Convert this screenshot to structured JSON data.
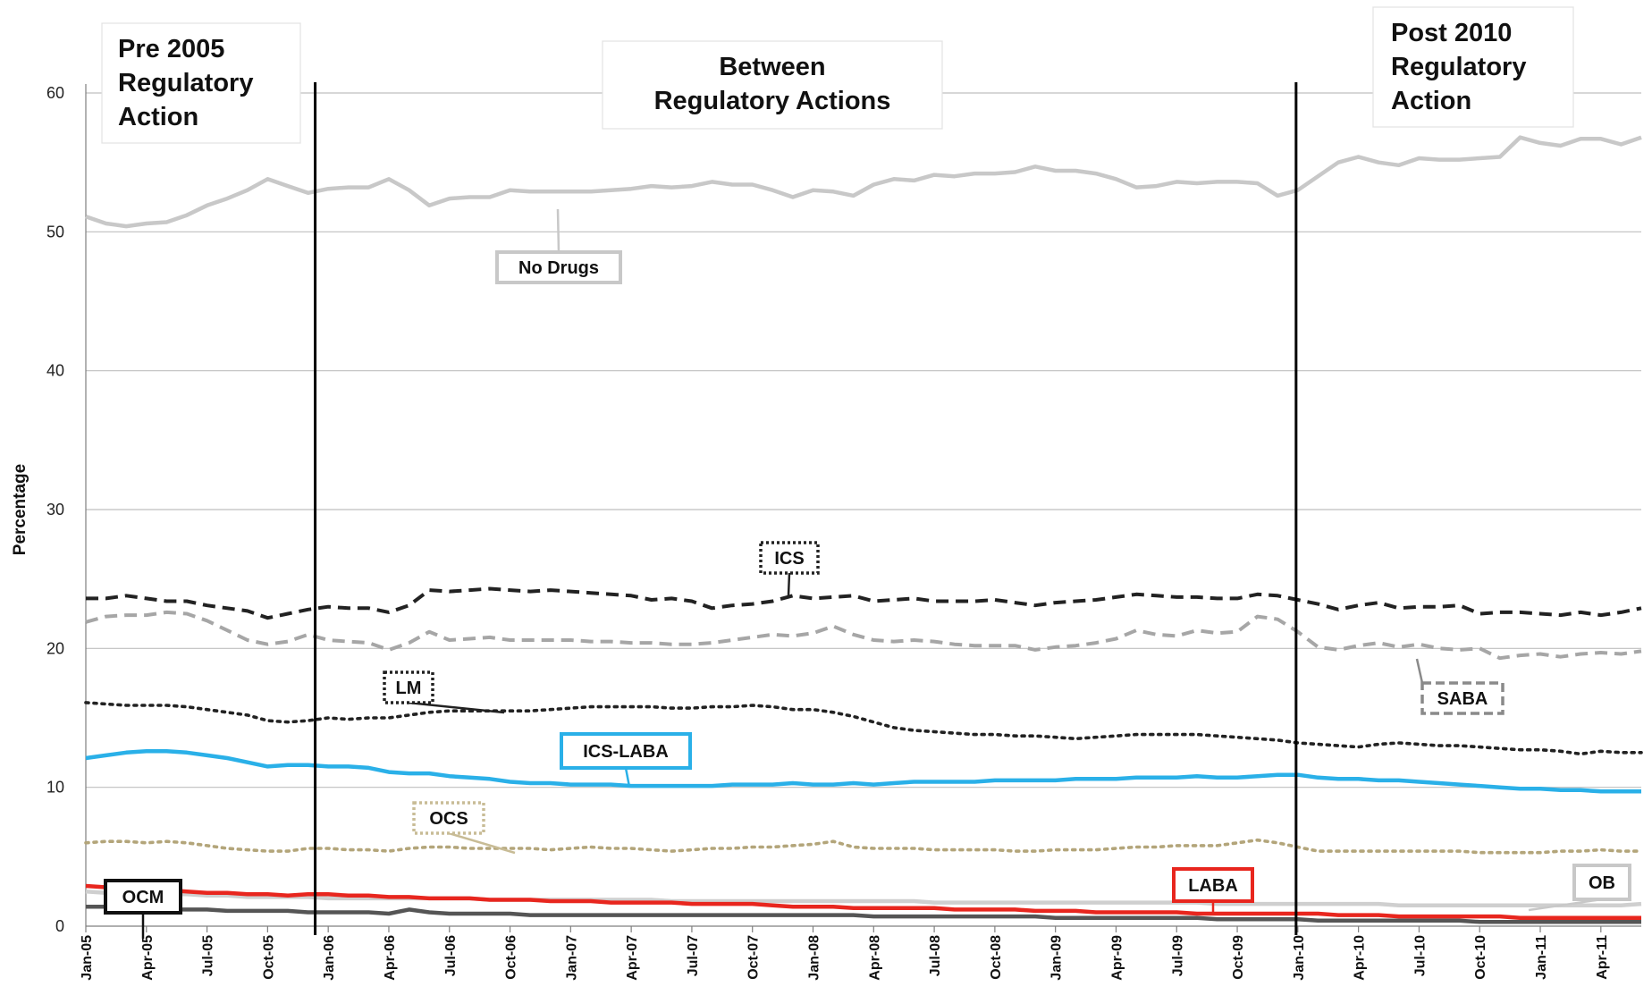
{
  "chart_data": {
    "type": "line",
    "title": "",
    "xlabel": "",
    "ylabel": "Percentage",
    "ylim": [
      0,
      60
    ],
    "yticks": [
      0,
      10,
      20,
      30,
      40,
      50,
      60
    ],
    "grid": true,
    "x": [
      "Jan-05",
      "Feb-05",
      "Mar-05",
      "Apr-05",
      "May-05",
      "Jun-05",
      "Jul-05",
      "Aug-05",
      "Sep-05",
      "Oct-05",
      "Nov-05",
      "Dec-05",
      "Jan-06",
      "Feb-06",
      "Mar-06",
      "Apr-06",
      "May-06",
      "Jun-06",
      "Jul-06",
      "Aug-06",
      "Sep-06",
      "Oct-06",
      "Nov-06",
      "Dec-06",
      "Jan-07",
      "Feb-07",
      "Mar-07",
      "Apr-07",
      "May-07",
      "Jun-07",
      "Jul-07",
      "Aug-07",
      "Sep-07",
      "Oct-07",
      "Nov-07",
      "Dec-07",
      "Jan-08",
      "Feb-08",
      "Mar-08",
      "Apr-08",
      "May-08",
      "Jun-08",
      "Jul-08",
      "Aug-08",
      "Sep-08",
      "Oct-08",
      "Nov-08",
      "Dec-08",
      "Jan-09",
      "Feb-09",
      "Mar-09",
      "Apr-09",
      "May-09",
      "Jun-09",
      "Jul-09",
      "Aug-09",
      "Sep-09",
      "Oct-09",
      "Nov-09",
      "Dec-09",
      "Jan-10",
      "Feb-10",
      "Mar-10",
      "Apr-10",
      "May-10",
      "Jun-10",
      "Jul-10",
      "Aug-10",
      "Sep-10",
      "Oct-10",
      "Nov-10",
      "Dec-10",
      "Jan-11",
      "Feb-11",
      "Mar-11",
      "Apr-11",
      "May-11",
      "Jun-11"
    ],
    "xtick_labels": [
      "Jan-05",
      "Apr-05",
      "Jul-05",
      "Oct-05",
      "Jan-06",
      "Apr-06",
      "Jul-06",
      "Oct-06",
      "Jan-07",
      "Apr-07",
      "Jul-07",
      "Oct-07",
      "Jan-08",
      "Apr-08",
      "Jul-08",
      "Oct-08",
      "Jan-09",
      "Apr-09",
      "Jul-09",
      "Oct-09",
      "Jan-10",
      "Apr-10",
      "Jul-10",
      "Oct-10",
      "Jan-11",
      "Apr-11"
    ],
    "series": [
      {
        "name": "No Drugs",
        "color": "#c8c8c8",
        "dash": "solid",
        "values": [
          51.1,
          50.6,
          50.4,
          50.6,
          50.7,
          51.2,
          51.9,
          52.4,
          53.0,
          53.8,
          53.3,
          52.8,
          53.1,
          53.2,
          53.2,
          53.8,
          53.0,
          51.9,
          52.4,
          52.5,
          52.5,
          53.0,
          52.9,
          52.9,
          52.9,
          52.9,
          53.0,
          53.1,
          53.3,
          53.2,
          53.3,
          53.6,
          53.4,
          53.4,
          53.0,
          52.5,
          53.0,
          52.9,
          52.6,
          53.4,
          53.8,
          53.7,
          54.1,
          54.0,
          54.2,
          54.2,
          54.3,
          54.7,
          54.4,
          54.4,
          54.2,
          53.8,
          53.2,
          53.3,
          53.6,
          53.5,
          53.6,
          53.6,
          53.5,
          52.6,
          53.0,
          54.0,
          55.0,
          55.4,
          55.0,
          54.8,
          55.3,
          55.2,
          55.2,
          55.3,
          55.4,
          56.8,
          56.4,
          56.2,
          56.7,
          56.7,
          56.3,
          56.8
        ]
      },
      {
        "name": "ICS",
        "color": "#222222",
        "dash": "dash",
        "values": [
          23.6,
          23.6,
          23.8,
          23.6,
          23.4,
          23.4,
          23.1,
          22.9,
          22.7,
          22.2,
          22.5,
          22.8,
          23.0,
          22.9,
          22.9,
          22.6,
          23.1,
          24.2,
          24.1,
          24.2,
          24.3,
          24.2,
          24.1,
          24.2,
          24.1,
          24.0,
          23.9,
          23.8,
          23.5,
          23.6,
          23.4,
          22.9,
          23.1,
          23.2,
          23.4,
          23.8,
          23.6,
          23.7,
          23.8,
          23.4,
          23.5,
          23.6,
          23.4,
          23.4,
          23.4,
          23.5,
          23.3,
          23.1,
          23.3,
          23.4,
          23.5,
          23.7,
          23.9,
          23.8,
          23.7,
          23.7,
          23.6,
          23.6,
          23.9,
          23.8,
          23.5,
          23.2,
          22.8,
          23.1,
          23.3,
          22.9,
          23.0,
          23.0,
          23.1,
          22.5,
          22.6,
          22.6,
          22.5,
          22.4,
          22.6,
          22.4,
          22.6,
          22.9
        ]
      },
      {
        "name": "SABA",
        "color": "#a6a6a6",
        "dash": "dash",
        "values": [
          21.9,
          22.3,
          22.4,
          22.4,
          22.6,
          22.5,
          22.0,
          21.3,
          20.6,
          20.3,
          20.5,
          21.0,
          20.6,
          20.5,
          20.4,
          19.9,
          20.4,
          21.2,
          20.6,
          20.7,
          20.8,
          20.6,
          20.6,
          20.6,
          20.6,
          20.5,
          20.5,
          20.4,
          20.4,
          20.3,
          20.3,
          20.4,
          20.6,
          20.8,
          21.0,
          20.9,
          21.1,
          21.6,
          21.0,
          20.6,
          20.5,
          20.6,
          20.5,
          20.3,
          20.2,
          20.2,
          20.2,
          19.9,
          20.1,
          20.2,
          20.4,
          20.7,
          21.3,
          21.0,
          20.9,
          21.3,
          21.1,
          21.2,
          22.3,
          22.1,
          21.2,
          20.1,
          19.9,
          20.2,
          20.4,
          20.1,
          20.3,
          20.0,
          19.9,
          20.0,
          19.3,
          19.5,
          19.6,
          19.4,
          19.6,
          19.7,
          19.6,
          19.8
        ]
      },
      {
        "name": "LM",
        "color": "#222222",
        "dash": "dot",
        "values": [
          16.1,
          16.0,
          15.9,
          15.9,
          15.9,
          15.8,
          15.6,
          15.4,
          15.2,
          14.8,
          14.7,
          14.8,
          15.0,
          14.9,
          15.0,
          15.0,
          15.2,
          15.4,
          15.5,
          15.5,
          15.5,
          15.5,
          15.5,
          15.6,
          15.7,
          15.8,
          15.8,
          15.8,
          15.8,
          15.7,
          15.7,
          15.8,
          15.8,
          15.9,
          15.8,
          15.6,
          15.6,
          15.4,
          15.1,
          14.7,
          14.3,
          14.1,
          14.0,
          13.9,
          13.8,
          13.8,
          13.7,
          13.7,
          13.6,
          13.5,
          13.6,
          13.7,
          13.8,
          13.8,
          13.8,
          13.8,
          13.7,
          13.6,
          13.5,
          13.4,
          13.2,
          13.1,
          13.0,
          12.9,
          13.1,
          13.2,
          13.1,
          13.0,
          13.0,
          12.9,
          12.8,
          12.7,
          12.7,
          12.6,
          12.4,
          12.6,
          12.5,
          12.5
        ]
      },
      {
        "name": "ICS-LABA",
        "color": "#2ab0e8",
        "dash": "solid",
        "values": [
          12.1,
          12.3,
          12.5,
          12.6,
          12.6,
          12.5,
          12.3,
          12.1,
          11.8,
          11.5,
          11.6,
          11.6,
          11.5,
          11.5,
          11.4,
          11.1,
          11.0,
          11.0,
          10.8,
          10.7,
          10.6,
          10.4,
          10.3,
          10.3,
          10.2,
          10.2,
          10.2,
          10.1,
          10.1,
          10.1,
          10.1,
          10.1,
          10.2,
          10.2,
          10.2,
          10.3,
          10.2,
          10.2,
          10.3,
          10.2,
          10.3,
          10.4,
          10.4,
          10.4,
          10.4,
          10.5,
          10.5,
          10.5,
          10.5,
          10.6,
          10.6,
          10.6,
          10.7,
          10.7,
          10.7,
          10.8,
          10.7,
          10.7,
          10.8,
          10.9,
          10.9,
          10.7,
          10.6,
          10.6,
          10.5,
          10.5,
          10.4,
          10.3,
          10.2,
          10.1,
          10.0,
          9.9,
          9.9,
          9.8,
          9.8,
          9.7,
          9.7,
          9.7
        ]
      },
      {
        "name": "OCS",
        "color": "#b3a57a",
        "dash": "dot",
        "values": [
          6.0,
          6.1,
          6.1,
          6.0,
          6.1,
          6.0,
          5.8,
          5.6,
          5.5,
          5.4,
          5.4,
          5.6,
          5.6,
          5.5,
          5.5,
          5.4,
          5.6,
          5.7,
          5.7,
          5.6,
          5.6,
          5.6,
          5.6,
          5.5,
          5.6,
          5.7,
          5.6,
          5.6,
          5.5,
          5.4,
          5.5,
          5.6,
          5.6,
          5.7,
          5.7,
          5.8,
          5.9,
          6.1,
          5.7,
          5.6,
          5.6,
          5.6,
          5.5,
          5.5,
          5.5,
          5.5,
          5.4,
          5.4,
          5.5,
          5.5,
          5.5,
          5.6,
          5.7,
          5.7,
          5.8,
          5.8,
          5.8,
          6.0,
          6.2,
          6.0,
          5.7,
          5.4,
          5.4,
          5.4,
          5.4,
          5.4,
          5.4,
          5.4,
          5.4,
          5.3,
          5.3,
          5.3,
          5.3,
          5.4,
          5.4,
          5.5,
          5.4,
          5.4
        ]
      },
      {
        "name": "OCM",
        "color": "#555555",
        "dash": "solid",
        "values": [
          1.4,
          1.4,
          1.3,
          1.3,
          1.2,
          1.2,
          1.2,
          1.1,
          1.1,
          1.1,
          1.1,
          1.0,
          1.0,
          1.0,
          1.0,
          0.9,
          1.2,
          1.0,
          0.9,
          0.9,
          0.9,
          0.9,
          0.8,
          0.8,
          0.8,
          0.8,
          0.8,
          0.8,
          0.8,
          0.8,
          0.8,
          0.8,
          0.8,
          0.8,
          0.8,
          0.8,
          0.8,
          0.8,
          0.8,
          0.7,
          0.7,
          0.7,
          0.7,
          0.7,
          0.7,
          0.7,
          0.7,
          0.7,
          0.6,
          0.6,
          0.6,
          0.6,
          0.6,
          0.6,
          0.6,
          0.6,
          0.5,
          0.5,
          0.5,
          0.5,
          0.5,
          0.4,
          0.4,
          0.4,
          0.4,
          0.4,
          0.4,
          0.4,
          0.4,
          0.3,
          0.3,
          0.3,
          0.3,
          0.3,
          0.3,
          0.3,
          0.3,
          0.3
        ]
      },
      {
        "name": "OB",
        "color": "#cfcfcf",
        "dash": "solid",
        "values": [
          2.5,
          2.4,
          2.4,
          2.3,
          2.3,
          2.3,
          2.2,
          2.2,
          2.1,
          2.1,
          2.1,
          2.1,
          2.0,
          2.0,
          2.0,
          2.0,
          2.0,
          2.0,
          2.0,
          2.0,
          1.9,
          1.9,
          1.9,
          1.9,
          1.9,
          1.9,
          1.9,
          1.9,
          1.9,
          1.8,
          1.8,
          1.8,
          1.8,
          1.8,
          1.8,
          1.8,
          1.8,
          1.8,
          1.8,
          1.8,
          1.8,
          1.8,
          1.7,
          1.7,
          1.7,
          1.7,
          1.7,
          1.7,
          1.7,
          1.7,
          1.7,
          1.7,
          1.7,
          1.7,
          1.7,
          1.7,
          1.6,
          1.6,
          1.6,
          1.6,
          1.6,
          1.6,
          1.6,
          1.6,
          1.6,
          1.5,
          1.5,
          1.5,
          1.5,
          1.5,
          1.5,
          1.5,
          1.5,
          1.5,
          1.5,
          1.5,
          1.5,
          1.6
        ]
      },
      {
        "name": "LABA",
        "color": "#e8261e",
        "dash": "solid",
        "values": [
          2.9,
          2.8,
          2.7,
          2.6,
          2.6,
          2.5,
          2.4,
          2.4,
          2.3,
          2.3,
          2.2,
          2.3,
          2.3,
          2.2,
          2.2,
          2.1,
          2.1,
          2.0,
          2.0,
          2.0,
          1.9,
          1.9,
          1.9,
          1.8,
          1.8,
          1.8,
          1.7,
          1.7,
          1.7,
          1.7,
          1.6,
          1.6,
          1.6,
          1.6,
          1.5,
          1.4,
          1.4,
          1.4,
          1.3,
          1.3,
          1.3,
          1.3,
          1.3,
          1.2,
          1.2,
          1.2,
          1.2,
          1.1,
          1.1,
          1.1,
          1.0,
          1.0,
          1.0,
          1.0,
          1.0,
          0.9,
          0.9,
          0.9,
          0.9,
          0.9,
          0.9,
          0.9,
          0.8,
          0.8,
          0.8,
          0.7,
          0.7,
          0.7,
          0.7,
          0.7,
          0.7,
          0.6,
          0.6,
          0.6,
          0.6,
          0.6,
          0.6,
          0.6
        ]
      }
    ],
    "vertical_markers": [
      "Dec-05",
      "Jan-10"
    ],
    "period_labels": [
      {
        "lines": [
          "Pre 2005",
          "Regulatory",
          "Action"
        ]
      },
      {
        "lines": [
          "Between",
          "Regulatory Actions"
        ]
      },
      {
        "lines": [
          "Post 2010",
          "Regulatory",
          "Action"
        ]
      }
    ],
    "annotations": [
      {
        "series": "No Drugs",
        "text": "No Drugs",
        "box_style": "solid",
        "box_color": "#c8c8c8"
      },
      {
        "series": "ICS",
        "text": "ICS",
        "box_style": "dotted",
        "box_color": "#222222"
      },
      {
        "series": "SABA",
        "text": "SABA",
        "box_style": "dashed",
        "box_color": "#8a8a8a"
      },
      {
        "series": "LM",
        "text": "LM",
        "box_style": "dotted",
        "box_color": "#222222"
      },
      {
        "series": "ICS-LABA",
        "text": "ICS-LABA",
        "box_style": "solid",
        "box_color": "#2ab0e8"
      },
      {
        "series": "OCS",
        "text": "OCS",
        "box_style": "dotted",
        "box_color": "#c8bc96"
      },
      {
        "series": "OCM",
        "text": "OCM",
        "box_style": "solid",
        "box_color": "#111111"
      },
      {
        "series": "LABA",
        "text": "LABA",
        "box_style": "solid",
        "box_color": "#e8261e"
      },
      {
        "series": "OB",
        "text": "OB",
        "box_style": "solid",
        "box_color": "#c8c8c8"
      }
    ]
  }
}
